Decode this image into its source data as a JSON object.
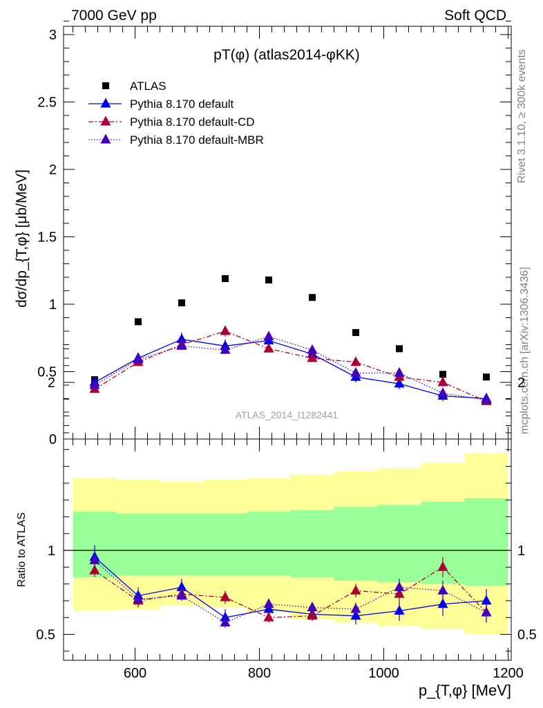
{
  "header": {
    "energy_label": "7000 GeV pp",
    "process_label": "Soft QCD"
  },
  "side_labels": {
    "rivet": "Rivet 3.1.10, ≥ 300k events",
    "mcplots": "mcplots.cern.ch [arXiv:1306.3436]"
  },
  "watermark": "ATLAS_2014_I1282441",
  "chart_data": [
    {
      "type": "scatter",
      "title": "pT(φ) (atlas2014-φKK)",
      "xlabel": "p_{T,φ} [MeV]",
      "ylabel": "dσ/dp_{T,φ} [μb/MeV]",
      "xlim": [
        485,
        1205
      ],
      "ylim": [
        0,
        3.1
      ],
      "y_ticks": [
        0,
        0.5,
        1,
        1.5,
        2,
        2.5,
        3
      ],
      "y_tick_labels": [
        "0",
        "0.5",
        "1",
        "1.5",
        "2",
        "2.5",
        "3"
      ],
      "legend_position": "top-left",
      "x": [
        535,
        605,
        675,
        745,
        815,
        885,
        955,
        1025,
        1095,
        1165
      ],
      "series": [
        {
          "name": "ATLAS",
          "style": "marker",
          "color": "#000000",
          "values": [
            0.44,
            0.87,
            1.01,
            1.19,
            1.18,
            1.05,
            0.79,
            0.67,
            0.48,
            0.46
          ]
        },
        {
          "name": "Pythia 8.170 default",
          "style": "solid",
          "color": "#0000ee",
          "values": [
            0.42,
            0.6,
            0.74,
            0.69,
            0.73,
            0.63,
            0.46,
            0.41,
            0.32,
            0.3
          ],
          "errors": [
            0.03,
            0.04,
            0.05,
            0.05,
            0.04,
            0.04,
            0.04,
            0.04,
            0.04,
            0.04
          ]
        },
        {
          "name": "Pythia 8.170 default-CD",
          "style": "dashdot",
          "color": "#aa0033",
          "values": [
            0.37,
            0.57,
            0.7,
            0.8,
            0.67,
            0.6,
            0.57,
            0.46,
            0.42,
            0.28
          ],
          "errors": [
            0.02,
            0.03,
            0.03,
            0.04,
            0.03,
            0.03,
            0.03,
            0.03,
            0.03,
            0.02
          ]
        },
        {
          "name": "Pythia 8.170 default-MBR",
          "style": "dotted",
          "color": "#4400bb",
          "values": [
            0.4,
            0.59,
            0.69,
            0.66,
            0.76,
            0.66,
            0.49,
            0.49,
            0.34,
            0.29
          ],
          "errors": [
            0.02,
            0.03,
            0.03,
            0.03,
            0.03,
            0.03,
            0.03,
            0.03,
            0.03,
            0.02
          ]
        }
      ]
    },
    {
      "type": "scatter",
      "title": "",
      "xlabel": "p_{T,φ} [MeV]",
      "ylabel": "Ratio to ATLAS",
      "xlim": [
        485,
        1205
      ],
      "ylim": [
        0.35,
        2.25
      ],
      "x_ticks": [
        600,
        800,
        1000,
        1200
      ],
      "x_tick_labels": [
        "600",
        "800",
        "1000",
        "1200"
      ],
      "y_ticks": [
        0.5,
        1,
        2
      ],
      "y_tick_labels": [
        "0.5",
        "1",
        "2"
      ],
      "reference_line": 1,
      "bin_edges": [
        500,
        570,
        640,
        710,
        780,
        850,
        920,
        990,
        1060,
        1130,
        1200
      ],
      "uncertainty_bands": [
        {
          "level": "outer",
          "color": "#ffff99",
          "lower": [
            0.64,
            0.65,
            0.67,
            0.66,
            0.63,
            0.59,
            0.57,
            0.55,
            0.53,
            0.5
          ],
          "upper": [
            1.43,
            1.42,
            1.41,
            1.42,
            1.43,
            1.45,
            1.47,
            1.49,
            1.52,
            1.58
          ]
        },
        {
          "level": "inner",
          "color": "#99ff99",
          "lower": [
            0.84,
            0.85,
            0.85,
            0.85,
            0.85,
            0.84,
            0.82,
            0.81,
            0.8,
            0.79
          ],
          "upper": [
            1.23,
            1.22,
            1.22,
            1.22,
            1.23,
            1.24,
            1.26,
            1.27,
            1.29,
            1.31
          ]
        }
      ],
      "x": [
        535,
        605,
        675,
        745,
        815,
        885,
        955,
        1025,
        1095,
        1165
      ],
      "series": [
        {
          "name": "Pythia 8.170 default",
          "style": "solid",
          "color": "#0000ee",
          "values": [
            0.96,
            0.73,
            0.78,
            0.6,
            0.65,
            0.62,
            0.61,
            0.64,
            0.68,
            0.7
          ],
          "errors": [
            0.07,
            0.05,
            0.05,
            0.05,
            0.04,
            0.04,
            0.05,
            0.06,
            0.07,
            0.07
          ]
        },
        {
          "name": "Pythia 8.170 default-CD",
          "style": "dashdot",
          "color": "#aa0033",
          "values": [
            0.88,
            0.7,
            0.74,
            0.72,
            0.6,
            0.61,
            0.76,
            0.74,
            0.9,
            0.63
          ],
          "errors": [
            0.04,
            0.04,
            0.03,
            0.04,
            0.03,
            0.03,
            0.04,
            0.05,
            0.06,
            0.06
          ]
        },
        {
          "name": "Pythia 8.170 default-MBR",
          "style": "dotted",
          "color": "#4400bb",
          "values": [
            0.94,
            0.71,
            0.73,
            0.57,
            0.68,
            0.66,
            0.65,
            0.78,
            0.76,
            0.63
          ],
          "errors": [
            0.04,
            0.04,
            0.03,
            0.03,
            0.03,
            0.03,
            0.04,
            0.05,
            0.06,
            0.06
          ]
        }
      ]
    }
  ]
}
